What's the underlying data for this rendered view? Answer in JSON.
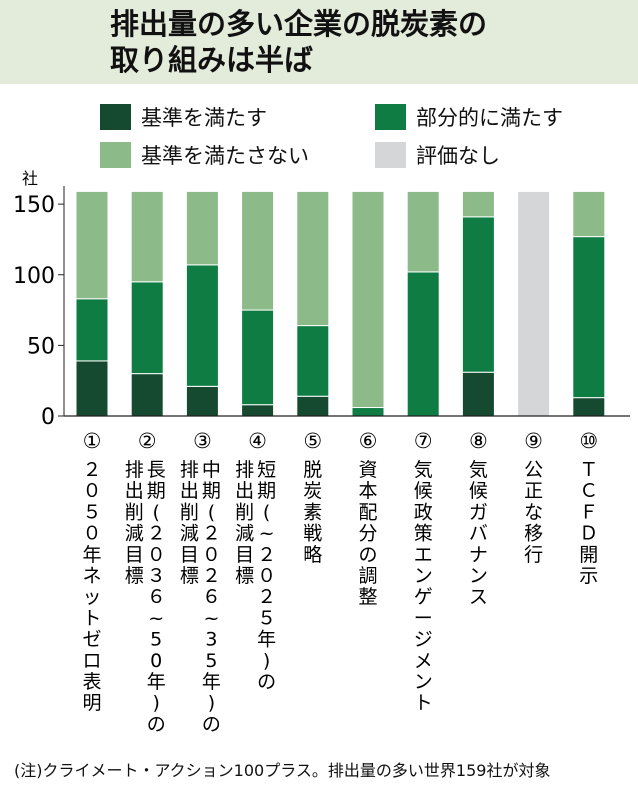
{
  "title_line1": "排出量の多い企業の脱炭素の",
  "title_line2": "取り組みは半ば",
  "footnote": "(注)クライメート・アクション100プラス。排出量の多い世界159社が対象",
  "colors": {
    "meets": "#164a30",
    "partial": "#0e7c43",
    "not_meets": "#8dba89",
    "none": "#d4d6d8",
    "header_bg": "#e3ebdb"
  },
  "chart_data": {
    "type": "bar",
    "stacked": true,
    "ylabel": "社",
    "ylim": [
      0,
      160
    ],
    "yticks": [
      0,
      50,
      100,
      150
    ],
    "legend": [
      {
        "label": "基準を満たす",
        "color": "#164a30"
      },
      {
        "label": "部分的に満たす",
        "color": "#0e7c43"
      },
      {
        "label": "基準を満たさない",
        "color": "#8dba89"
      },
      {
        "label": "評価なし",
        "color": "#d4d6d8"
      }
    ],
    "categories": [
      "①２０５０年ネットゼロ表明",
      "②長期(２０３６~50年)の排出削減目標",
      "③中期(２０２６~35年)の排出削減目標",
      "④短期(~２０２５年)の排出削減目標",
      "⑤脱炭素戦略",
      "⑥資本配分の調整",
      "⑦気候政策エンゲージメント",
      "⑧気候ガバナンス",
      "⑨公正な移行",
      "⑩ＴＣＦＤ開示"
    ],
    "label_columns": [
      [
        "①",
        "２０５０年ネットゼロ表明"
      ],
      [
        "②",
        "長期(２０３６~50年)の",
        "排出削減目標"
      ],
      [
        "③",
        "中期(２０２６~35年)の",
        "排出削減目標"
      ],
      [
        "④",
        "短期(~２０２５年)の",
        "排出削減目標"
      ],
      [
        "⑤",
        "脱炭素戦略"
      ],
      [
        "⑥",
        "資本配分の調整"
      ],
      [
        "⑦",
        "気候政策エンゲージメント"
      ],
      [
        "⑧",
        "気候ガバナンス"
      ],
      [
        "⑨",
        "公正な移行"
      ],
      [
        "⑩",
        "ＴＣＦＤ開示"
      ]
    ],
    "series": [
      {
        "name": "基準を満たす",
        "color": "#164a30",
        "values": [
          39,
          30,
          21,
          8,
          14,
          0,
          0,
          31,
          0,
          13
        ]
      },
      {
        "name": "部分的に満たす",
        "color": "#0e7c43",
        "values": [
          44,
          65,
          86,
          67,
          50,
          6,
          102,
          110,
          0,
          114
        ]
      },
      {
        "name": "基準を満たさない",
        "color": "#8dba89",
        "values": [
          76,
          64,
          52,
          84,
          95,
          153,
          57,
          18,
          0,
          32
        ]
      },
      {
        "name": "評価なし",
        "color": "#d4d6d8",
        "values": [
          0,
          0,
          0,
          0,
          0,
          0,
          0,
          0,
          159,
          0
        ]
      }
    ]
  }
}
